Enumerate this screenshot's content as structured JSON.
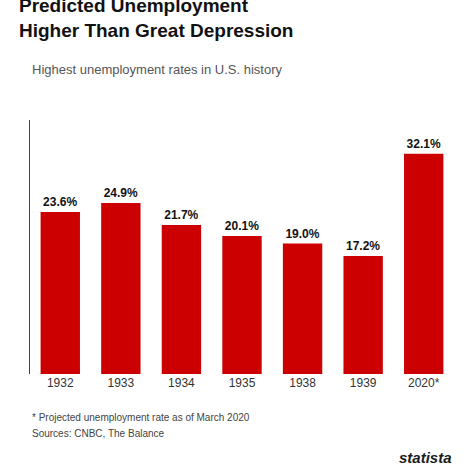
{
  "chart_data": {
    "type": "bar",
    "title": "Predicted Unemployment\nHigher Than Great Depression",
    "subtitle": "Highest unemployment rates in U.S. history",
    "categories": [
      "1932",
      "1933",
      "1934",
      "1935",
      "1938",
      "1939",
      "2020*"
    ],
    "values": [
      23.6,
      24.9,
      21.7,
      20.1,
      19.0,
      17.2,
      32.1
    ],
    "value_labels": [
      "23.6%",
      "24.9%",
      "21.7%",
      "20.1%",
      "19.0%",
      "17.2%",
      "32.1%"
    ],
    "data_labels": true,
    "color": "#cc0000",
    "ylim": [
      0,
      37
    ],
    "tick_labels": "x",
    "grid": false,
    "annotations": [
      "* Projected unemployment rate as of March 2020",
      "Sources: CNBC, The Balance",
      "statista"
    ]
  }
}
